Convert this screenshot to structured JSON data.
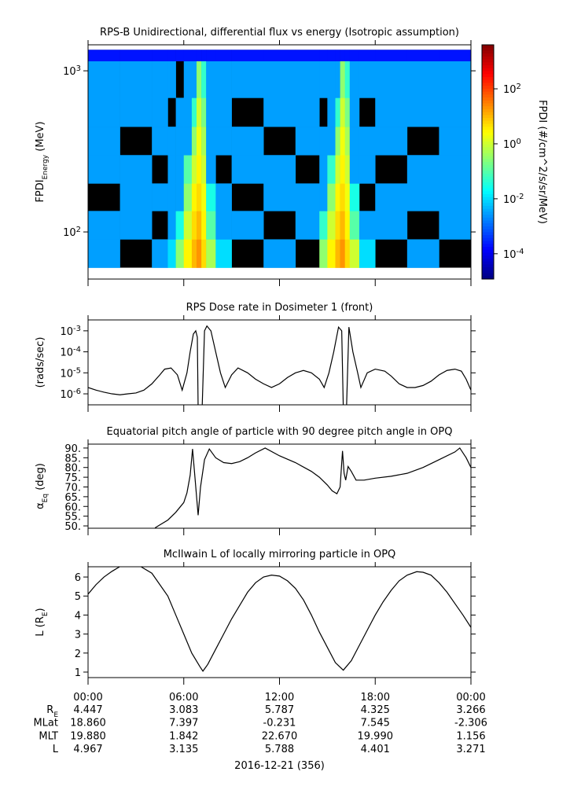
{
  "chart_data": [
    {
      "type": "heatmap",
      "title": "RPS-B  Unidirectional, differential flux vs energy (Isotropic assumption)",
      "ylabel": [
        "FPDI",
        "Energy",
        " (MeV)"
      ],
      "log_y": true,
      "xlim": [
        0,
        24
      ],
      "xticks": [
        0,
        6,
        12,
        18,
        24
      ],
      "ylim": [
        51,
        1450
      ],
      "yticks": [
        {
          "value": 100,
          "label": "10",
          "exponent": "2"
        },
        {
          "value": 1000,
          "label": "10",
          "exponent": "3"
        }
      ],
      "xbins": [
        0,
        2,
        4,
        5,
        5.5,
        6,
        6.5,
        6.8,
        7.1,
        7.4,
        8,
        9,
        11,
        13,
        14.5,
        15,
        15.5,
        15.8,
        16.1,
        16.4,
        17,
        18,
        20,
        22,
        24
      ],
      "ybins": [
        60,
        90,
        135,
        200,
        300,
        450,
        680,
        1150,
        1350
      ],
      "values": [
        [
          0.003,
          null,
          0.003,
          0.01,
          0.3,
          3,
          10,
          20,
          5,
          0.5,
          0.01,
          null,
          0.003,
          null,
          0.3,
          3,
          10,
          20,
          5,
          1,
          0.01,
          null,
          0.003,
          null
        ],
        [
          0.003,
          0.003,
          null,
          0.003,
          0.03,
          1,
          5,
          10,
          3,
          0.1,
          0.003,
          0.003,
          null,
          0.003,
          0.05,
          1,
          5,
          10,
          3,
          0.1,
          0.003,
          0.003,
          null,
          0.003
        ],
        [
          null,
          0.003,
          0.003,
          0.003,
          0.003,
          0.3,
          3,
          5,
          2,
          0.03,
          0.003,
          null,
          0.003,
          0.003,
          0.003,
          0.3,
          3,
          5,
          2,
          0.03,
          null,
          0.003,
          0.003,
          0.003
        ],
        [
          0.003,
          0.003,
          null,
          0.003,
          0.003,
          0.1,
          1,
          3,
          1,
          0.003,
          null,
          0.003,
          0.003,
          null,
          0.003,
          0.05,
          1,
          3,
          1,
          0.003,
          0.003,
          null,
          0.003,
          0.003
        ],
        [
          0.003,
          null,
          0.003,
          0.003,
          0.003,
          0.003,
          0.3,
          2,
          0.5,
          0.003,
          0.003,
          0.003,
          null,
          0.003,
          0.003,
          0.003,
          0.3,
          2,
          0.5,
          0.003,
          0.003,
          0.003,
          null,
          0.003
        ],
        [
          0.003,
          0.003,
          0.003,
          null,
          0.003,
          0.003,
          0.05,
          1,
          0.2,
          0.003,
          0.003,
          null,
          0.003,
          0.003,
          null,
          0.003,
          0.05,
          1,
          0.2,
          0.003,
          null,
          0.003,
          0.003,
          0.003
        ],
        [
          0.003,
          0.003,
          0.003,
          0.003,
          null,
          0.003,
          0.003,
          0.3,
          0.05,
          0.003,
          0.003,
          0.003,
          0.003,
          0.003,
          0.003,
          0.003,
          0.003,
          0.3,
          0.05,
          0.003,
          0.003,
          0.003,
          0.003,
          0.003
        ],
        [
          0.0002,
          0.0002,
          0.0002,
          0.0002,
          0.0002,
          0.0002,
          0.0002,
          0.0002,
          0.0002,
          0.0002,
          0.0002,
          0.0002,
          0.0002,
          0.0002,
          0.0002,
          0.0002,
          0.0002,
          0.0002,
          0.0002,
          0.0002,
          0.0002,
          0.0002,
          0.0002,
          0.0002
        ]
      ],
      "zlabel": "FPDI (#/cm^2/s/sr/MeV)",
      "zlim": [
        1.2e-05,
        4000
      ],
      "zticks": [
        {
          "value": 0.0001,
          "label": "10",
          "exponent": "-4"
        },
        {
          "value": 0.01,
          "label": "10",
          "exponent": "-2"
        },
        {
          "value": 1,
          "label": "10",
          "exponent": "0"
        },
        {
          "value": 100,
          "label": "10",
          "exponent": "2"
        }
      ]
    },
    {
      "type": "line",
      "title": "RPS  Dose rate in Dosimeter 1 (front)",
      "ylabel": [
        "(rads/sec)"
      ],
      "log_y": true,
      "xlim": [
        0,
        24
      ],
      "xticks": [
        0,
        6,
        12,
        18,
        24
      ],
      "ylim": [
        3e-07,
        0.0033
      ],
      "yticks": [
        {
          "value": 1e-06,
          "label": "10",
          "exponent": "-6"
        },
        {
          "value": 1e-05,
          "label": "10",
          "exponent": "-5"
        },
        {
          "value": 0.0001,
          "label": "10",
          "exponent": "-4"
        },
        {
          "value": 0.001,
          "label": "10",
          "exponent": "-3"
        }
      ],
      "color": "#000000",
      "x": [
        0,
        0.5,
        1,
        1.5,
        2,
        2.5,
        3,
        3.5,
        4,
        4.5,
        4.8,
        5.2,
        5.6,
        5.9,
        6.2,
        6.4,
        6.6,
        6.75,
        6.85,
        6.9,
        7.15,
        7.3,
        7.45,
        7.7,
        8,
        8.3,
        8.6,
        9,
        9.4,
        10,
        10.5,
        11,
        11.5,
        12,
        12.5,
        13,
        13.5,
        14,
        14.5,
        14.8,
        15.1,
        15.4,
        15.7,
        15.9,
        16,
        16.2,
        16.35,
        16.6,
        16.9,
        17.1,
        17.5,
        18,
        18.6,
        19,
        19.5,
        20,
        20.5,
        21,
        21.5,
        22,
        22.5,
        23,
        23.4,
        23.7,
        24
      ],
      "values": [
        2e-06,
        1.5e-06,
        1.2e-06,
        1e-06,
        9e-07,
        1e-06,
        1.1e-06,
        1.5e-06,
        3e-06,
        8e-06,
        1.5e-05,
        1.7e-05,
        8e-06,
        1.5e-06,
        1e-05,
        0.0001,
        0.0007,
        0.001,
        0.0005,
        2e-07,
        2e-07,
        0.001,
        0.0017,
        0.001,
        0.0001,
        1e-05,
        2e-06,
        8e-06,
        1.7e-05,
        1e-05,
        5e-06,
        3e-06,
        2e-06,
        3e-06,
        6e-06,
        1e-05,
        1.3e-05,
        1e-05,
        5e-06,
        2e-06,
        1e-05,
        0.0001,
        0.0015,
        0.001,
        2e-07,
        2e-07,
        0.0015,
        0.0001,
        1e-05,
        2e-06,
        1e-05,
        1.5e-05,
        1.2e-05,
        7e-06,
        3e-06,
        2e-06,
        2e-06,
        2.5e-06,
        4e-06,
        8e-06,
        1.3e-05,
        1.5e-05,
        1.2e-05,
        5e-06,
        1.5e-06
      ]
    },
    {
      "type": "line",
      "title": "Equatorial pitch angle of particle with 90 degree pitch angle in OPQ",
      "ylabel": [
        "α",
        "Eq",
        " (deg)"
      ],
      "xlim": [
        0,
        24
      ],
      "xticks": [
        0,
        6,
        12,
        18,
        24
      ],
      "ylim": [
        48.8,
        92
      ],
      "yticks": [
        {
          "value": 50,
          "label": "50."
        },
        {
          "value": 55,
          "label": "55."
        },
        {
          "value": 60,
          "label": "60."
        },
        {
          "value": 65,
          "label": "65."
        },
        {
          "value": 70,
          "label": "70."
        },
        {
          "value": 75,
          "label": "75."
        },
        {
          "value": 80,
          "label": "80."
        },
        {
          "value": 85,
          "label": "85."
        },
        {
          "value": 90,
          "label": "90."
        }
      ],
      "color": "#000000",
      "x": [
        4.2,
        4.5,
        5,
        5.5,
        6,
        6.2,
        6.4,
        6.55,
        6.7,
        6.9,
        7.05,
        7.3,
        7.6,
        8,
        8.5,
        9,
        9.5,
        10,
        10.5,
        11.1,
        12,
        13,
        14,
        14.5,
        15,
        15.3,
        15.6,
        15.8,
        15.95,
        16.05,
        16.15,
        16.3,
        16.5,
        16.8,
        17.3,
        18,
        19,
        20,
        21,
        22,
        23,
        23.3,
        23.7,
        24
      ],
      "values": [
        49,
        50.5,
        53,
        57,
        62,
        67,
        76,
        89.5,
        75,
        55.5,
        70,
        84,
        89.5,
        85,
        82.5,
        82,
        83,
        85,
        87.5,
        90,
        86,
        82.5,
        78,
        75,
        71,
        68,
        66.5,
        70,
        88.5,
        77,
        73.5,
        80.5,
        78,
        73.5,
        73.5,
        74.5,
        75.5,
        77,
        80,
        84,
        88,
        90,
        85,
        80
      ]
    },
    {
      "type": "line",
      "title": "McIlwain L of locally mirroring particle in OPQ",
      "ylabel": [
        "L (R",
        "E",
        ")"
      ],
      "xlim": [
        0,
        24
      ],
      "xticks": [
        {
          "value": 0,
          "label": "00:00"
        },
        {
          "value": 6,
          "label": "06:00"
        },
        {
          "value": 12,
          "label": "12:00"
        },
        {
          "value": 18,
          "label": "18:00"
        },
        {
          "value": 24,
          "label": "00:00"
        }
      ],
      "ylim": [
        0.71,
        6.54
      ],
      "yticks": [
        1,
        2,
        3,
        4,
        5,
        6
      ],
      "color": "#000000",
      "x": [
        0,
        0.5,
        1,
        1.5,
        2,
        3.3,
        4,
        5,
        5.5,
        6,
        6.5,
        7,
        7.2,
        7.5,
        8,
        8.5,
        9,
        9.5,
        10,
        10.5,
        11,
        11.5,
        12,
        12.5,
        13,
        13.5,
        14,
        14.5,
        15,
        15.5,
        16,
        16.5,
        17,
        17.5,
        18,
        18.5,
        19,
        19.5,
        20,
        20.6,
        21,
        21.5,
        22,
        22.5,
        23,
        23.5,
        24
      ],
      "values": [
        5.1,
        5.6,
        6.0,
        6.3,
        6.55,
        6.55,
        6.2,
        5.0,
        4.0,
        3.0,
        2.0,
        1.3,
        1.05,
        1.4,
        2.2,
        3.0,
        3.8,
        4.5,
        5.2,
        5.7,
        6.0,
        6.1,
        6.05,
        5.8,
        5.4,
        4.8,
        4.0,
        3.1,
        2.3,
        1.5,
        1.1,
        1.6,
        2.4,
        3.2,
        4.0,
        4.7,
        5.3,
        5.8,
        6.1,
        6.28,
        6.25,
        6.1,
        5.7,
        5.2,
        4.6,
        4.0,
        3.35
      ]
    }
  ],
  "ephemeris": {
    "rows": [
      {
        "label": [
          "R",
          "E"
        ],
        "values": [
          "4.447",
          "3.083",
          "5.787",
          "4.325",
          "3.266"
        ]
      },
      {
        "label": [
          "MLat"
        ],
        "values": [
          "18.860",
          "7.397",
          "-0.231",
          "7.545",
          "-2.306"
        ]
      },
      {
        "label": [
          "MLT"
        ],
        "values": [
          "19.880",
          "1.842",
          "22.670",
          "19.990",
          "1.156"
        ]
      },
      {
        "label": [
          "L"
        ],
        "values": [
          "4.967",
          "3.135",
          "5.788",
          "4.401",
          "3.271"
        ]
      }
    ],
    "date": "2016-12-21 (356)"
  }
}
